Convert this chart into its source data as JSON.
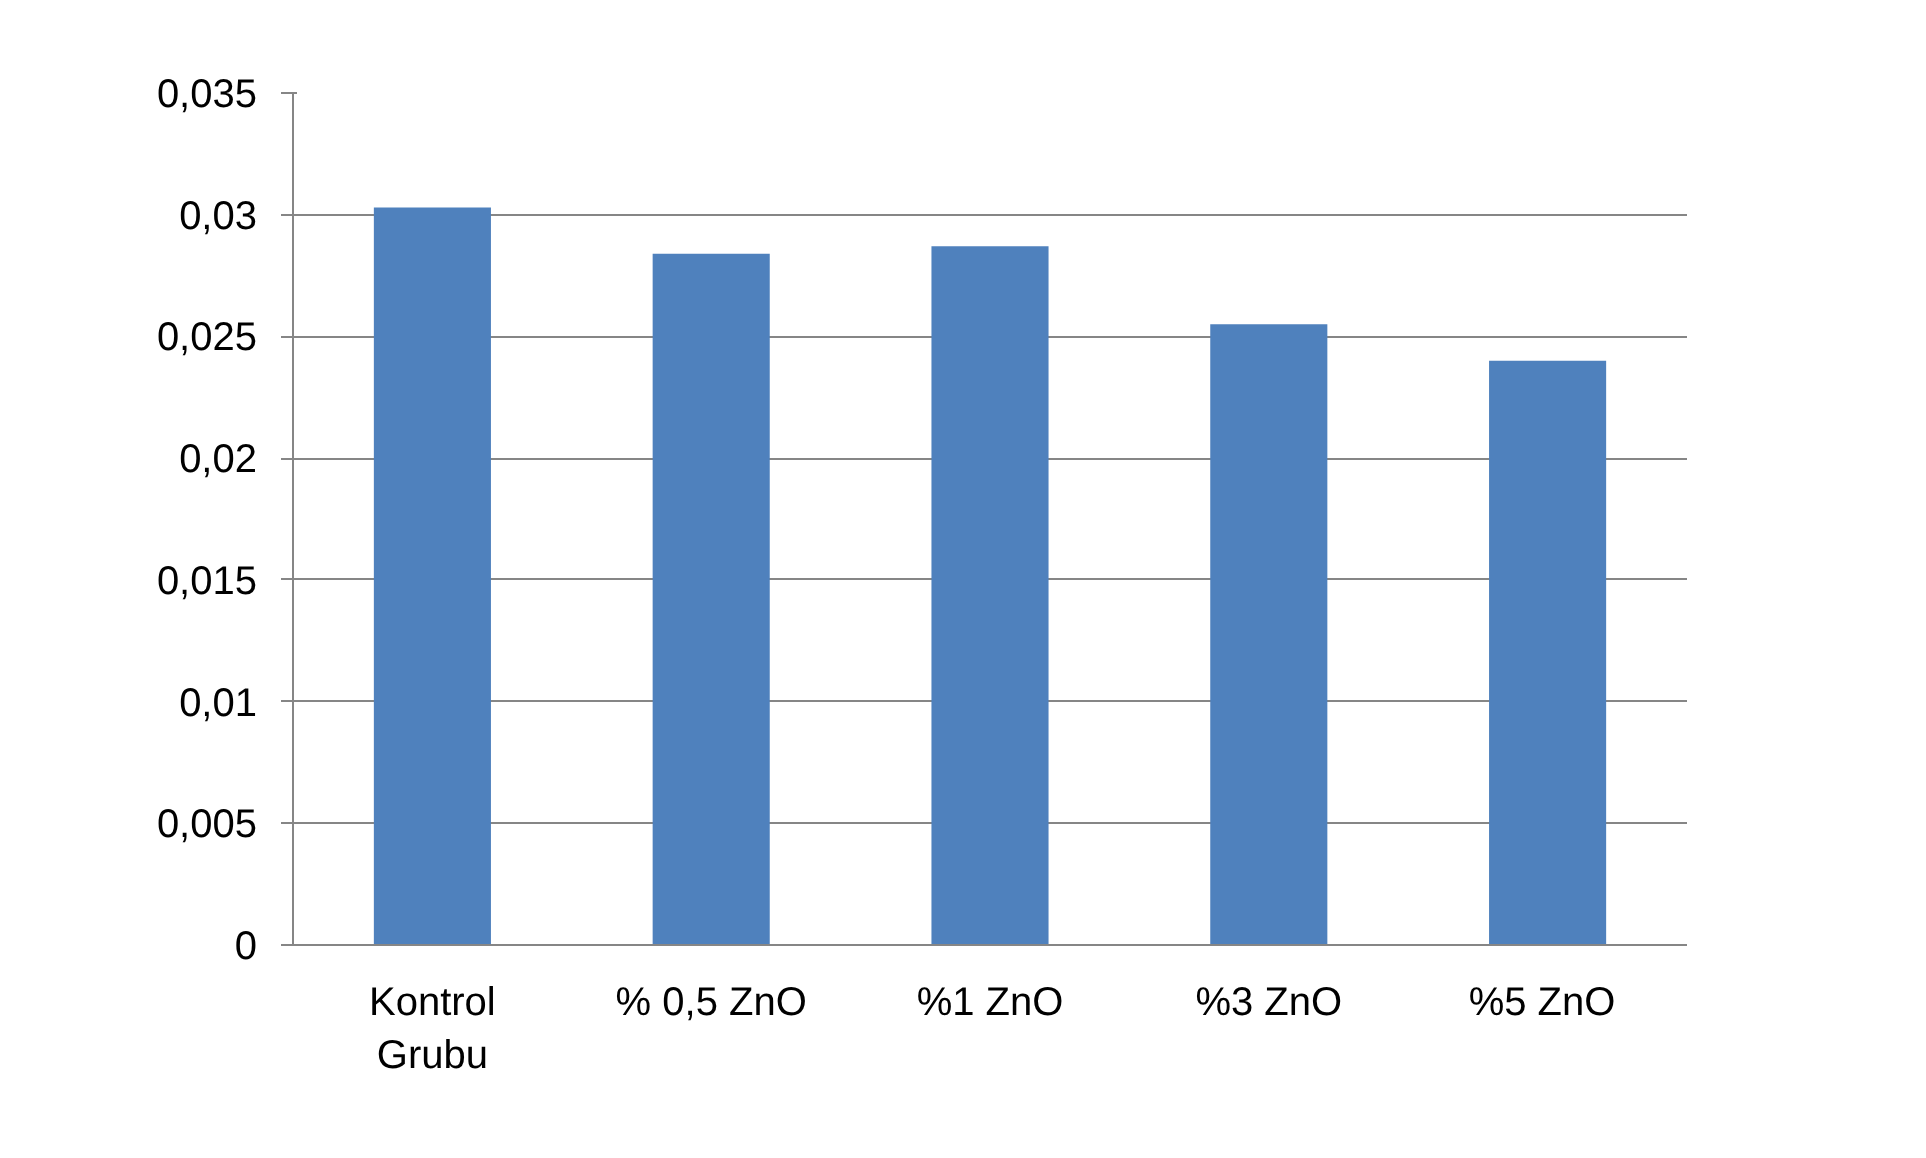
{
  "chart_data": {
    "type": "bar",
    "categories": [
      "Kontrol Grubu",
      "% 0,5 ZnO",
      "%1 ZnO",
      "%3 ZnO",
      "%5  ZnO"
    ],
    "values": [
      0.0303,
      0.0284,
      0.0287,
      0.0255,
      0.024
    ],
    "color": "#4f81bd",
    "ylim": [
      0,
      0.035
    ],
    "yticks": [
      {
        "value": 0,
        "label": "0"
      },
      {
        "value": 0.005,
        "label": "0,005"
      },
      {
        "value": 0.01,
        "label": "0,01"
      },
      {
        "value": 0.015,
        "label": "0,015"
      },
      {
        "value": 0.02,
        "label": "0,02"
      },
      {
        "value": 0.025,
        "label": "0,025"
      },
      {
        "value": 0.03,
        "label": "0,03"
      },
      {
        "value": 0.035,
        "label": "0,035"
      }
    ],
    "grid": "y"
  }
}
